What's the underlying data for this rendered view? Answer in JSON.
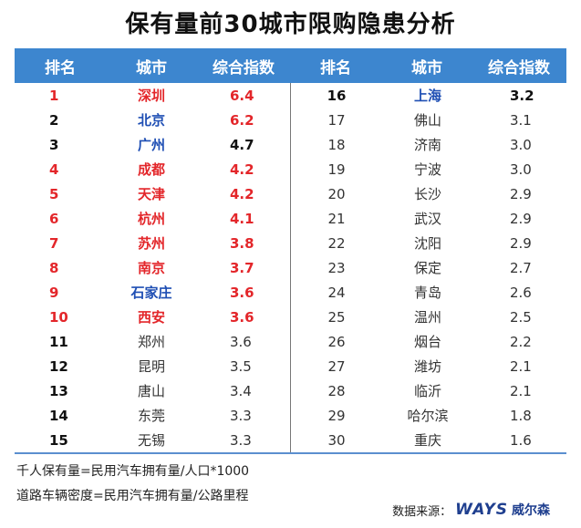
{
  "title": "保有量前30城市限购隐患分析",
  "headers": {
    "rank": "排名",
    "city": "城市",
    "index": "综合指数"
  },
  "left_rows": [
    {
      "rank": "1",
      "city": "深圳",
      "index": "6.4",
      "rank_style": "red",
      "city_style": "red",
      "index_style": "red"
    },
    {
      "rank": "2",
      "city": "北京",
      "index": "6.2",
      "rank_style": "black",
      "city_style": "blue",
      "index_style": "red"
    },
    {
      "rank": "3",
      "city": "广州",
      "index": "4.7",
      "rank_style": "black",
      "city_style": "blue",
      "index_style": "black"
    },
    {
      "rank": "4",
      "city": "成都",
      "index": "4.2",
      "rank_style": "red",
      "city_style": "red",
      "index_style": "red"
    },
    {
      "rank": "5",
      "city": "天津",
      "index": "4.2",
      "rank_style": "red",
      "city_style": "red",
      "index_style": "red"
    },
    {
      "rank": "6",
      "city": "杭州",
      "index": "4.1",
      "rank_style": "red",
      "city_style": "red",
      "index_style": "red"
    },
    {
      "rank": "7",
      "city": "苏州",
      "index": "3.8",
      "rank_style": "red",
      "city_style": "red",
      "index_style": "red"
    },
    {
      "rank": "8",
      "city": "南京",
      "index": "3.7",
      "rank_style": "red",
      "city_style": "red",
      "index_style": "red"
    },
    {
      "rank": "9",
      "city": "石家庄",
      "index": "3.6",
      "rank_style": "red",
      "city_style": "blue",
      "index_style": "red"
    },
    {
      "rank": "10",
      "city": "西安",
      "index": "3.6",
      "rank_style": "red",
      "city_style": "red",
      "index_style": "red"
    },
    {
      "rank": "11",
      "city": "郑州",
      "index": "3.6",
      "rank_style": "black",
      "city_style": "plain",
      "index_style": "plain"
    },
    {
      "rank": "12",
      "city": "昆明",
      "index": "3.5",
      "rank_style": "black",
      "city_style": "plain",
      "index_style": "plain"
    },
    {
      "rank": "13",
      "city": "唐山",
      "index": "3.4",
      "rank_style": "black",
      "city_style": "plain",
      "index_style": "plain"
    },
    {
      "rank": "14",
      "city": "东莞",
      "index": "3.3",
      "rank_style": "black",
      "city_style": "plain",
      "index_style": "plain"
    },
    {
      "rank": "15",
      "city": "无锡",
      "index": "3.3",
      "rank_style": "black",
      "city_style": "plain",
      "index_style": "plain"
    }
  ],
  "right_rows": [
    {
      "rank": "16",
      "city": "上海",
      "index": "3.2",
      "rank_style": "black",
      "city_style": "blue",
      "index_style": "black"
    },
    {
      "rank": "17",
      "city": "佛山",
      "index": "3.1",
      "rank_style": "plain",
      "city_style": "plain",
      "index_style": "plain"
    },
    {
      "rank": "18",
      "city": "济南",
      "index": "3.0",
      "rank_style": "plain",
      "city_style": "plain",
      "index_style": "plain"
    },
    {
      "rank": "19",
      "city": "宁波",
      "index": "3.0",
      "rank_style": "plain",
      "city_style": "plain",
      "index_style": "plain"
    },
    {
      "rank": "20",
      "city": "长沙",
      "index": "2.9",
      "rank_style": "plain",
      "city_style": "plain",
      "index_style": "plain"
    },
    {
      "rank": "21",
      "city": "武汉",
      "index": "2.9",
      "rank_style": "plain",
      "city_style": "plain",
      "index_style": "plain"
    },
    {
      "rank": "22",
      "city": "沈阳",
      "index": "2.9",
      "rank_style": "plain",
      "city_style": "plain",
      "index_style": "plain"
    },
    {
      "rank": "23",
      "city": "保定",
      "index": "2.7",
      "rank_style": "plain",
      "city_style": "plain",
      "index_style": "plain"
    },
    {
      "rank": "24",
      "city": "青岛",
      "index": "2.6",
      "rank_style": "plain",
      "city_style": "plain",
      "index_style": "plain"
    },
    {
      "rank": "25",
      "city": "温州",
      "index": "2.5",
      "rank_style": "plain",
      "city_style": "plain",
      "index_style": "plain"
    },
    {
      "rank": "26",
      "city": "烟台",
      "index": "2.2",
      "rank_style": "plain",
      "city_style": "plain",
      "index_style": "plain"
    },
    {
      "rank": "27",
      "city": "潍坊",
      "index": "2.1",
      "rank_style": "plain",
      "city_style": "plain",
      "index_style": "plain"
    },
    {
      "rank": "28",
      "city": "临沂",
      "index": "2.1",
      "rank_style": "plain",
      "city_style": "plain",
      "index_style": "plain"
    },
    {
      "rank": "29",
      "city": "哈尔滨",
      "index": "1.8",
      "rank_style": "plain",
      "city_style": "plain",
      "index_style": "plain"
    },
    {
      "rank": "30",
      "city": "重庆",
      "index": "1.6",
      "rank_style": "plain",
      "city_style": "plain",
      "index_style": "plain"
    }
  ],
  "notes": {
    "line1": "千人保有量=民用汽车拥有量/人口*1000",
    "line2": "道路车辆密度=民用汽车拥有量/公路里程"
  },
  "source": {
    "label": "数据来源：",
    "logo_text": "WAYS",
    "logo_cn": "威尔森"
  },
  "colors": {
    "header_bg": "#3d86cf",
    "red": "#e3262a",
    "blue": "#1f4fb4"
  }
}
